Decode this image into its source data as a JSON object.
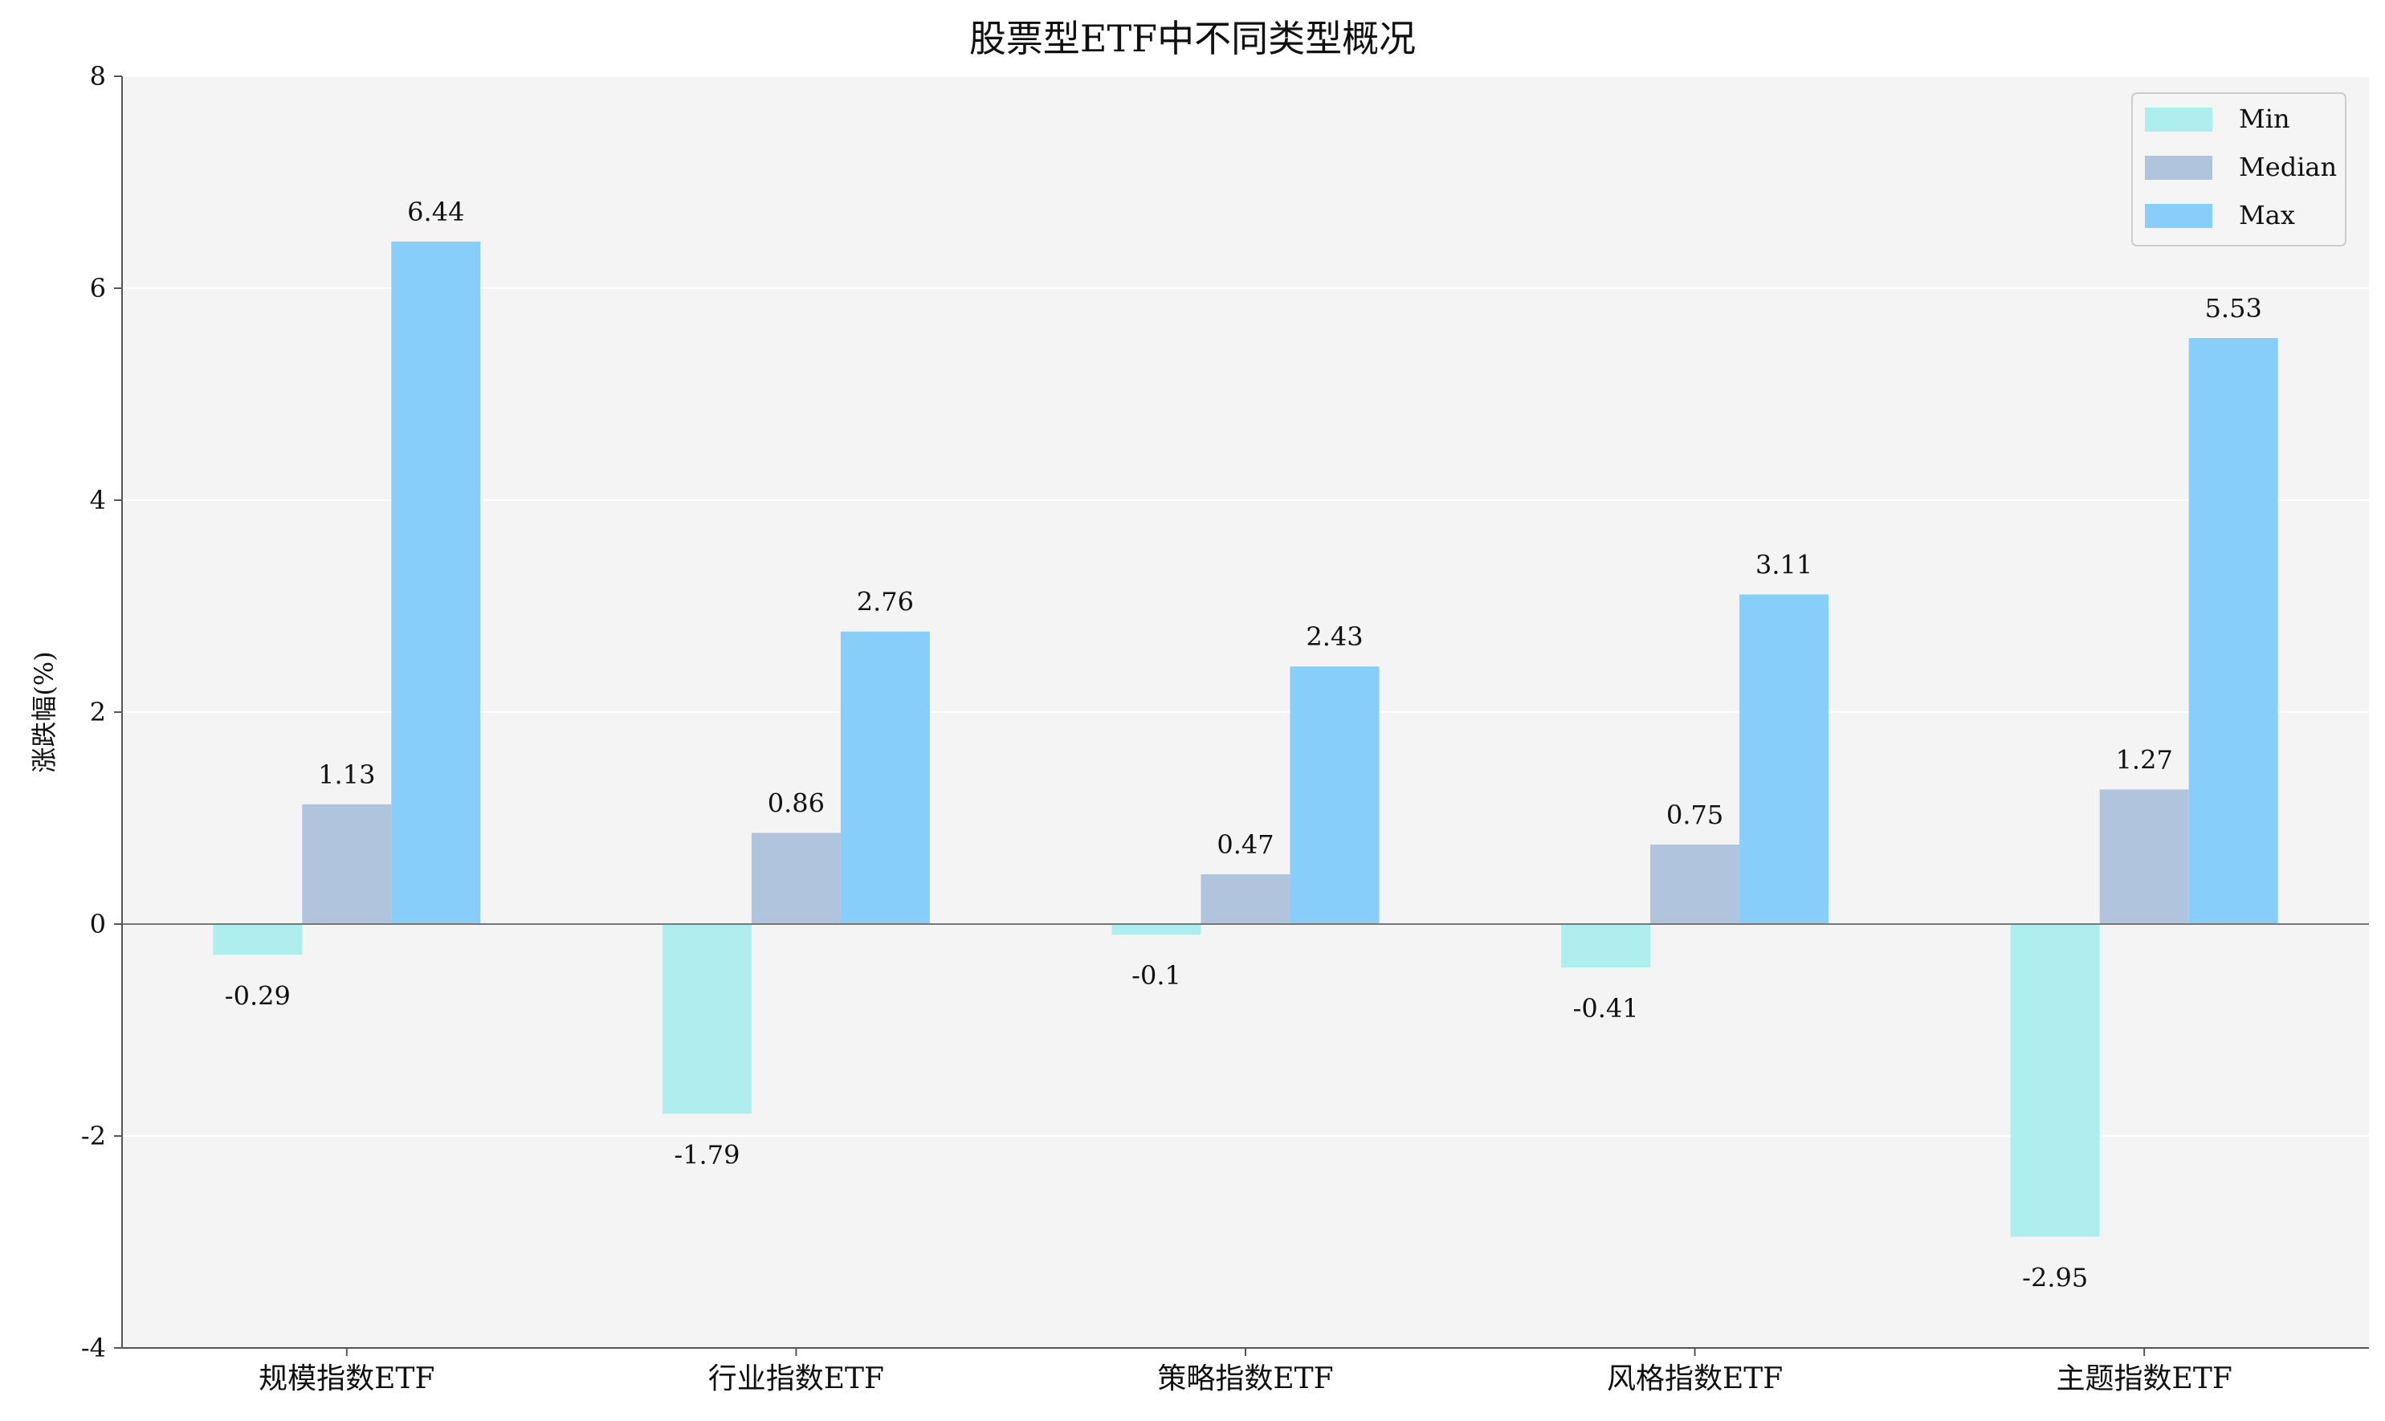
{
  "chart_data": {
    "type": "bar",
    "title": "股票型ETF中不同类型概况",
    "xlabel": "",
    "ylabel": "涨跌幅(%)",
    "ylim": [
      -4,
      8
    ],
    "yticks": [
      "-4",
      "-2",
      "0",
      "2",
      "4",
      "6",
      "8"
    ],
    "categories": [
      "规模指数ETF",
      "行业指数ETF",
      "策略指数ETF",
      "风格指数ETF",
      "主题指数ETF"
    ],
    "series": [
      {
        "name": "Min",
        "color": "#AFEEEE",
        "values": [
          -0.29,
          -1.79,
          -0.1,
          -0.41,
          -2.95
        ],
        "labels": [
          "-0.29",
          "-1.79",
          "-0.1",
          "-0.41",
          "-2.95"
        ]
      },
      {
        "name": "Median",
        "color": "#B0C4DE",
        "values": [
          1.13,
          0.86,
          0.47,
          0.75,
          1.27
        ],
        "labels": [
          "1.13",
          "0.86",
          "0.47",
          "0.75",
          "1.27"
        ]
      },
      {
        "name": "Max",
        "color": "#87CEFA",
        "values": [
          6.44,
          2.76,
          2.43,
          3.11,
          5.53
        ],
        "labels": [
          "6.44",
          "2.76",
          "2.43",
          "3.11",
          "5.53"
        ]
      }
    ],
    "grid": "horizontal",
    "legend_position": "top-right",
    "plot_background": "#F4F4F4"
  }
}
